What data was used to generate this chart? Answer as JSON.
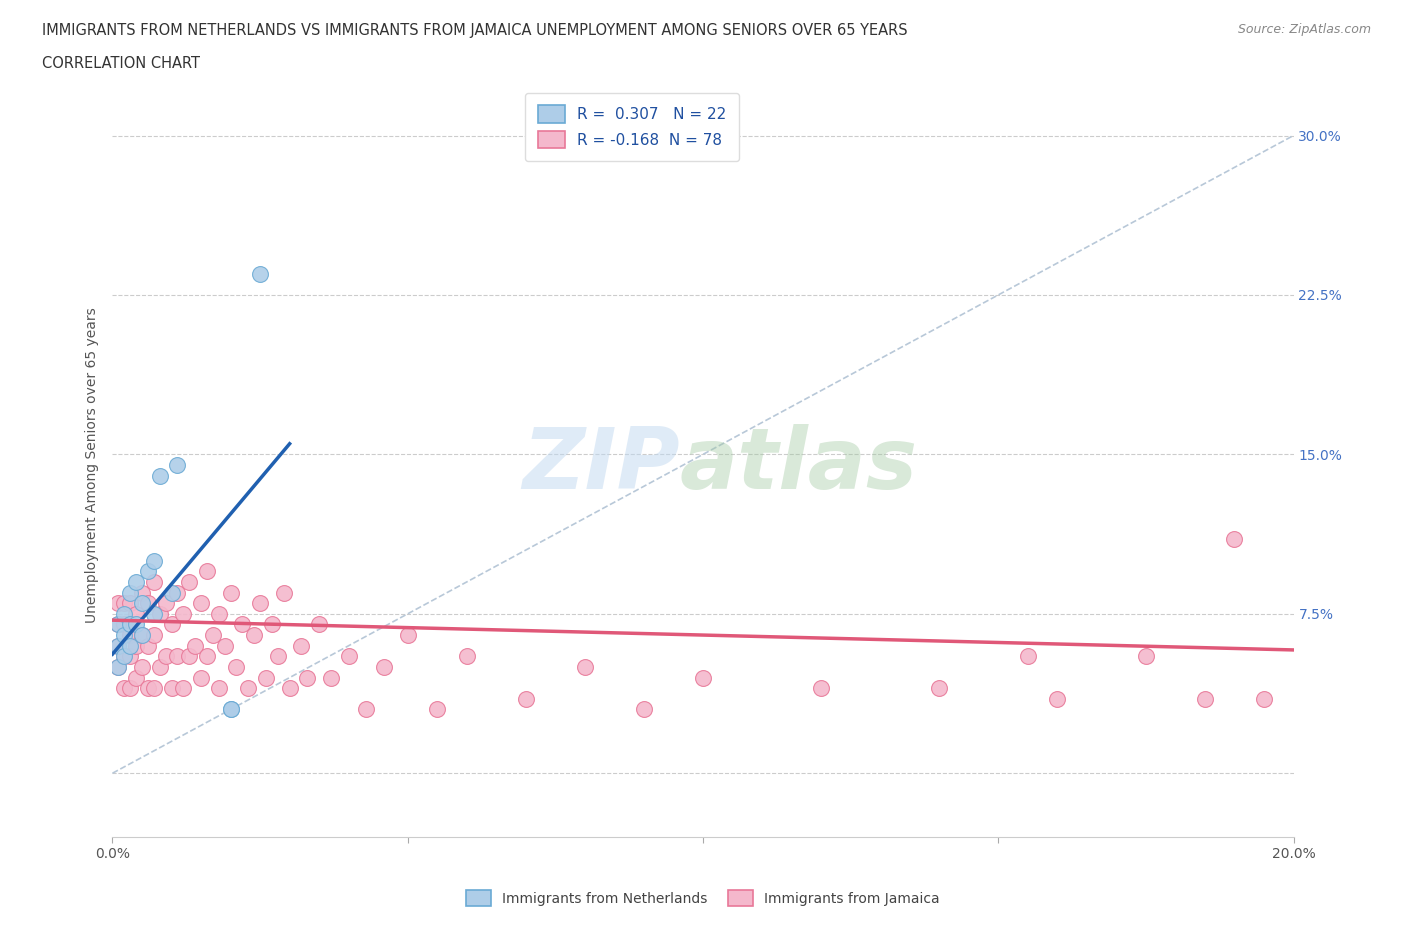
{
  "title_line1": "IMMIGRANTS FROM NETHERLANDS VS IMMIGRANTS FROM JAMAICA UNEMPLOYMENT AMONG SENIORS OVER 65 YEARS",
  "title_line2": "CORRELATION CHART",
  "source": "Source: ZipAtlas.com",
  "ylabel": "Unemployment Among Seniors over 65 years",
  "xlim": [
    0.0,
    0.2
  ],
  "ylim": [
    -0.03,
    0.32
  ],
  "xticks": [
    0.0,
    0.05,
    0.1,
    0.15,
    0.2
  ],
  "xtick_labels": [
    "0.0%",
    "",
    "",
    "",
    "20.0%"
  ],
  "ytick_positions": [
    0.0,
    0.075,
    0.15,
    0.225,
    0.3
  ],
  "ytick_labels_right": [
    "",
    "7.5%",
    "15.0%",
    "22.5%",
    "30.0%"
  ],
  "netherlands_color": "#aecde8",
  "netherlands_edge": "#6aaad4",
  "jamaica_color": "#f4b8cc",
  "jamaica_edge": "#e87898",
  "netherlands_R": 0.307,
  "netherlands_N": 22,
  "jamaica_R": -0.168,
  "jamaica_N": 78,
  "netherlands_line_color": "#2060b0",
  "jamaica_line_color": "#e05878",
  "diagonal_color": "#b8c8d8",
  "watermark_zip": "ZIP",
  "watermark_atlas": "atlas",
  "netherlands_x": [
    0.001,
    0.001,
    0.001,
    0.002,
    0.002,
    0.002,
    0.003,
    0.003,
    0.003,
    0.004,
    0.004,
    0.005,
    0.005,
    0.006,
    0.007,
    0.007,
    0.008,
    0.01,
    0.011,
    0.02,
    0.02,
    0.025
  ],
  "netherlands_y": [
    0.05,
    0.06,
    0.07,
    0.055,
    0.065,
    0.075,
    0.06,
    0.07,
    0.085,
    0.07,
    0.09,
    0.065,
    0.08,
    0.095,
    0.075,
    0.1,
    0.14,
    0.085,
    0.145,
    0.03,
    0.03,
    0.235
  ],
  "jamaica_x": [
    0.001,
    0.001,
    0.001,
    0.001,
    0.002,
    0.002,
    0.002,
    0.002,
    0.003,
    0.003,
    0.003,
    0.003,
    0.004,
    0.004,
    0.004,
    0.005,
    0.005,
    0.005,
    0.006,
    0.006,
    0.006,
    0.007,
    0.007,
    0.007,
    0.008,
    0.008,
    0.009,
    0.009,
    0.01,
    0.01,
    0.011,
    0.011,
    0.012,
    0.012,
    0.013,
    0.013,
    0.014,
    0.015,
    0.015,
    0.016,
    0.016,
    0.017,
    0.018,
    0.018,
    0.019,
    0.02,
    0.021,
    0.022,
    0.023,
    0.024,
    0.025,
    0.026,
    0.027,
    0.028,
    0.029,
    0.03,
    0.032,
    0.033,
    0.035,
    0.037,
    0.04,
    0.043,
    0.046,
    0.05,
    0.055,
    0.06,
    0.07,
    0.08,
    0.09,
    0.1,
    0.12,
    0.14,
    0.155,
    0.16,
    0.175,
    0.185,
    0.19,
    0.195
  ],
  "jamaica_y": [
    0.05,
    0.06,
    0.07,
    0.08,
    0.04,
    0.055,
    0.07,
    0.08,
    0.04,
    0.055,
    0.065,
    0.08,
    0.045,
    0.06,
    0.075,
    0.05,
    0.065,
    0.085,
    0.04,
    0.06,
    0.08,
    0.04,
    0.065,
    0.09,
    0.05,
    0.075,
    0.055,
    0.08,
    0.04,
    0.07,
    0.055,
    0.085,
    0.04,
    0.075,
    0.055,
    0.09,
    0.06,
    0.045,
    0.08,
    0.055,
    0.095,
    0.065,
    0.04,
    0.075,
    0.06,
    0.085,
    0.05,
    0.07,
    0.04,
    0.065,
    0.08,
    0.045,
    0.07,
    0.055,
    0.085,
    0.04,
    0.06,
    0.045,
    0.07,
    0.045,
    0.055,
    0.03,
    0.05,
    0.065,
    0.03,
    0.055,
    0.035,
    0.05,
    0.03,
    0.045,
    0.04,
    0.04,
    0.055,
    0.035,
    0.055,
    0.035,
    0.11,
    0.035
  ],
  "netherlands_regline_x": [
    0.0,
    0.03
  ],
  "netherlands_regline_y": [
    0.056,
    0.155
  ],
  "jamaica_regline_x": [
    0.0,
    0.2
  ],
  "jamaica_regline_y": [
    0.072,
    0.058
  ]
}
